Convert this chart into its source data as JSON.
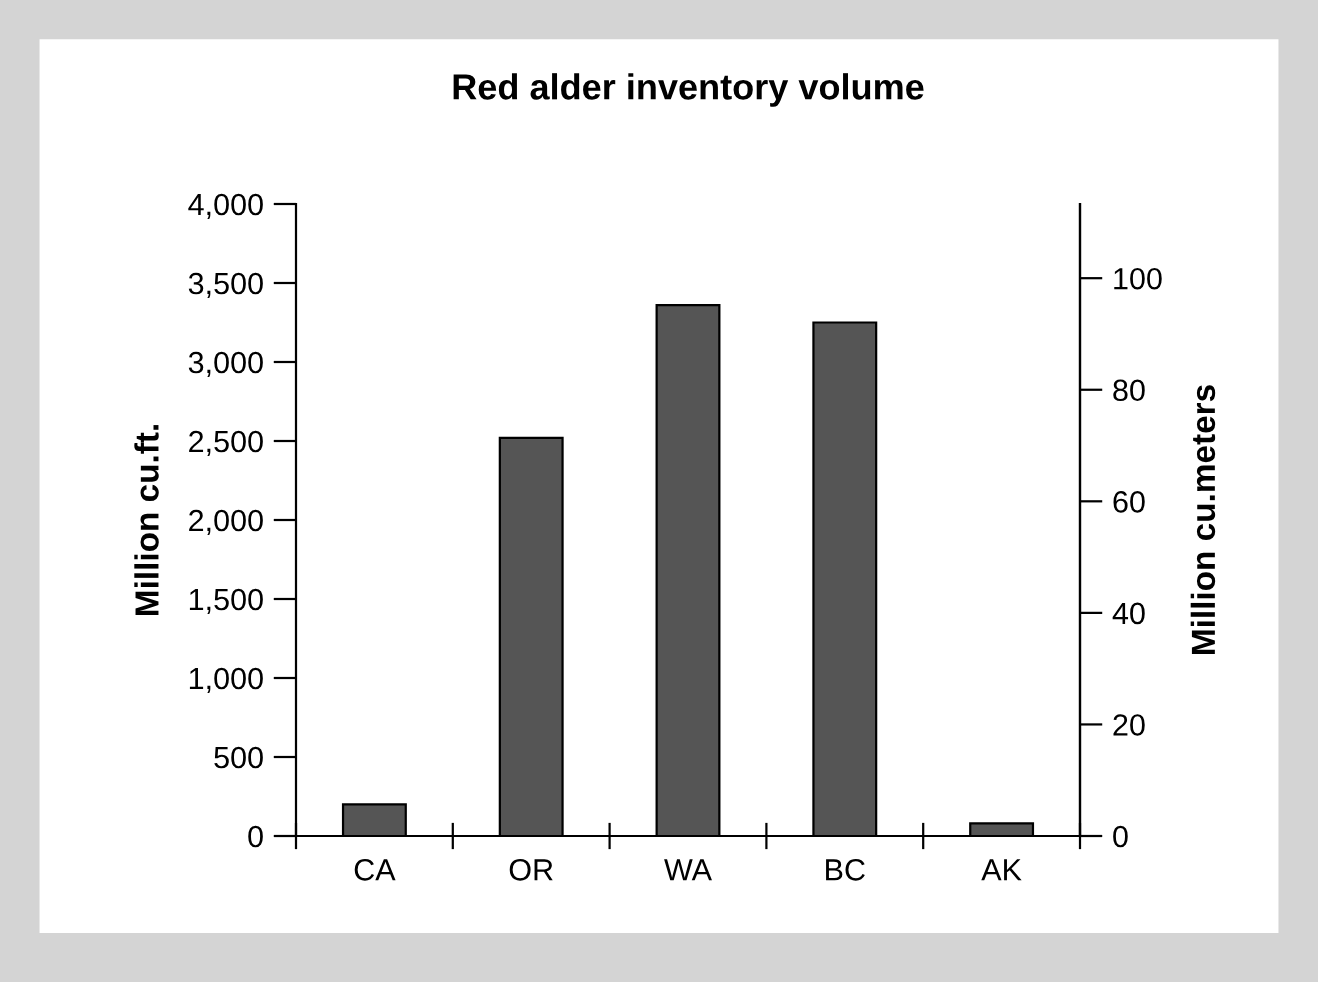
{
  "chart_data": {
    "type": "bar",
    "title": "Red alder inventory volume",
    "categories": [
      "CA",
      "OR",
      "WA",
      "BC",
      "AK"
    ],
    "values": [
      200,
      2520,
      3360,
      3250,
      80
    ],
    "color": "#555555",
    "ylabel": "Million cu.ft.",
    "y2label": "Million cu.meters",
    "ylim": [
      0,
      4000
    ],
    "yticks": [
      {
        "value": 0,
        "label": "0"
      },
      {
        "value": 500,
        "label": "500"
      },
      {
        "value": 1000,
        "label": "1,000"
      },
      {
        "value": 1500,
        "label": "1,500"
      },
      {
        "value": 2000,
        "label": "2,000"
      },
      {
        "value": 2500,
        "label": "2,500"
      },
      {
        "value": 3000,
        "label": "3,000"
      },
      {
        "value": 3500,
        "label": "3,500"
      },
      {
        "value": 4000,
        "label": "4,000"
      }
    ],
    "y2lim": [
      0,
      113.3
    ],
    "y2ticks": [
      0,
      20,
      40,
      60,
      80,
      100
    ],
    "grid": false,
    "legend": false
  }
}
